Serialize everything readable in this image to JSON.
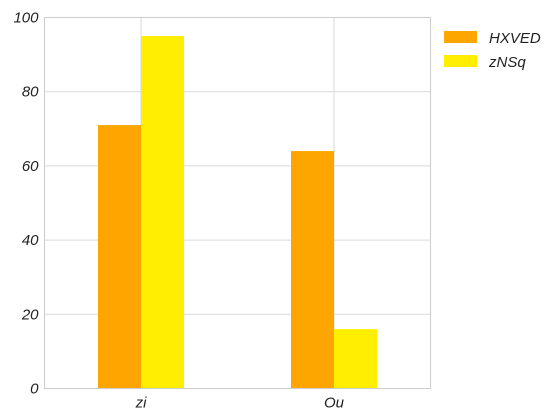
{
  "chart_data": {
    "type": "bar",
    "categories": [
      "zi",
      "Ou"
    ],
    "series": [
      {
        "name": "HXVED",
        "values": [
          71,
          64
        ],
        "color": "#FFA500"
      },
      {
        "name": "zNSq",
        "values": [
          95,
          16
        ],
        "color": "#FFEE00"
      }
    ],
    "title": "",
    "xlabel": "",
    "ylabel": "",
    "ylim": [
      0,
      100
    ],
    "yticks": [
      0,
      20,
      40,
      60,
      80,
      100
    ],
    "grid": true,
    "legend_position": "right"
  }
}
